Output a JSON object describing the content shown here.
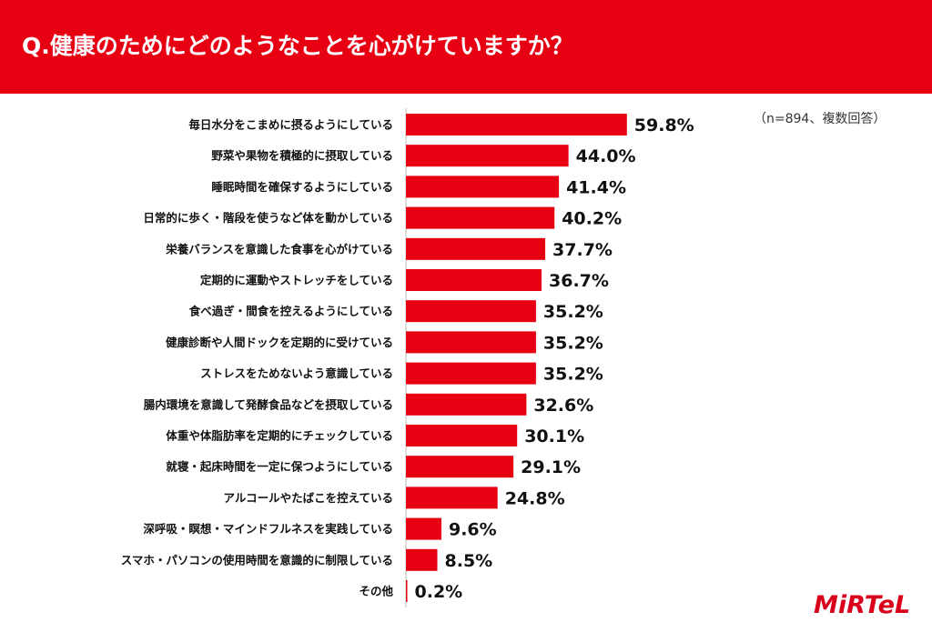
{
  "header": {
    "title": "Q.健康のためにどのようなことを心がけていますか？"
  },
  "note": "（n=894、複数回答）",
  "brand": {
    "logo_text": "MiRTeL"
  },
  "colors": {
    "accent": "#e60012",
    "bar": "#e60012",
    "text": "#111111"
  },
  "chart_data": {
    "type": "bar",
    "orientation": "horizontal",
    "categories": [
      "毎日水分をこまめに摂るようにしている",
      "野菜や果物を積極的に摂取している",
      "睡眠時間を確保するようにしている",
      "日常的に歩く・階段を使うなど体を動かしている",
      "栄養バランスを意識した食事を心がけている",
      "定期的に運動やストレッチをしている",
      "食べ過ぎ・間食を控えるようにしている",
      "健康診断や人間ドックを定期的に受けている",
      "ストレスをためないよう意識している",
      "腸内環境を意識して発酵食品などを摂取している",
      "体重や体脂肪率を定期的にチェックしている",
      "就寝・起床時間を一定に保つようにしている",
      "アルコールやたばこを控えている",
      "深呼吸・瞑想・マインドフルネスを実践している",
      "スマホ・パソコンの使用時間を意識的に制限している",
      "その他"
    ],
    "values": [
      59.8,
      44.0,
      41.4,
      40.2,
      37.7,
      36.7,
      35.2,
      35.2,
      35.2,
      32.6,
      30.1,
      29.1,
      24.8,
      9.6,
      8.5,
      0.2
    ],
    "value_labels": [
      "59.8%",
      "44.0%",
      "41.4%",
      "40.2%",
      "37.7%",
      "36.7%",
      "35.2%",
      "35.2%",
      "35.2%",
      "32.6%",
      "30.1%",
      "29.1%",
      "24.8%",
      "9.6%",
      "8.5%",
      "0.2%"
    ],
    "unit": "%",
    "xlim": [
      0,
      100
    ],
    "grid": false,
    "legend": "none"
  }
}
